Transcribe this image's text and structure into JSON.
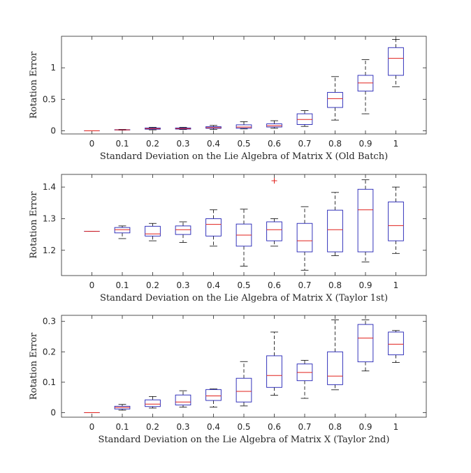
{
  "colors": {
    "box": "#1f1fb4",
    "median": "#e0201b",
    "whisker": "#000000",
    "outlier": "#e0201b",
    "axis": "#262626"
  },
  "chart_data": [
    {
      "type": "box",
      "xlabel": "Standard Deviation on the Lie Algebra of Matrix X (Old Batch)",
      "ylabel": "Rotation Error",
      "ylim": [
        -0.05,
        1.5
      ],
      "yticks": [
        0,
        0.5,
        1
      ],
      "ytick_labels": [
        "0",
        "0.5",
        "1"
      ],
      "categories": [
        "0",
        "0.1",
        "0.2",
        "0.3",
        "0.4",
        "0.5",
        "0.6",
        "0.7",
        "0.8",
        "0.9",
        "1"
      ],
      "boxes": [
        {
          "min": 0,
          "q1": 0,
          "median": 0,
          "q3": 0,
          "max": 0
        },
        {
          "min": 0.01,
          "q1": 0.013,
          "median": 0.015,
          "q3": 0.018,
          "max": 0.022
        },
        {
          "min": 0.015,
          "q1": 0.025,
          "median": 0.035,
          "q3": 0.045,
          "max": 0.055
        },
        {
          "min": 0.02,
          "q1": 0.027,
          "median": 0.035,
          "q3": 0.045,
          "max": 0.055
        },
        {
          "min": 0.02,
          "q1": 0.04,
          "median": 0.05,
          "q3": 0.065,
          "max": 0.085
        },
        {
          "min": 0.03,
          "q1": 0.04,
          "median": 0.06,
          "q3": 0.095,
          "max": 0.145
        },
        {
          "min": 0.04,
          "q1": 0.06,
          "median": 0.08,
          "q3": 0.11,
          "max": 0.16
        },
        {
          "min": 0.07,
          "q1": 0.1,
          "median": 0.18,
          "q3": 0.27,
          "max": 0.32
        },
        {
          "min": 0.17,
          "q1": 0.37,
          "median": 0.51,
          "q3": 0.61,
          "max": 0.86
        },
        {
          "min": 0.27,
          "q1": 0.63,
          "median": 0.76,
          "q3": 0.88,
          "max": 1.13
        },
        {
          "min": 0.7,
          "q1": 0.88,
          "median": 1.15,
          "q3": 1.32,
          "max": 1.45
        }
      ],
      "outliers": []
    },
    {
      "type": "box",
      "xlabel": "Standard Deviation on the Lie Algebra of Matrix X (Taylor 1st)",
      "ylabel": "Rotation Error",
      "ylim": [
        1.12,
        1.44
      ],
      "yticks": [
        1.2,
        1.3,
        1.4
      ],
      "ytick_labels": [
        "1.2",
        "1.3",
        "1.4"
      ],
      "categories": [
        "0",
        "0.1",
        "0.2",
        "0.3",
        "0.4",
        "0.5",
        "0.6",
        "0.7",
        "0.8",
        "0.9",
        "1"
      ],
      "boxes": [
        {
          "min": 1.26,
          "q1": 1.26,
          "median": 1.26,
          "q3": 1.26,
          "max": 1.26
        },
        {
          "min": 1.237,
          "q1": 1.255,
          "median": 1.265,
          "q3": 1.272,
          "max": 1.277
        },
        {
          "min": 1.23,
          "q1": 1.245,
          "median": 1.252,
          "q3": 1.276,
          "max": 1.285
        },
        {
          "min": 1.225,
          "q1": 1.25,
          "median": 1.265,
          "q3": 1.277,
          "max": 1.29
        },
        {
          "min": 1.213,
          "q1": 1.245,
          "median": 1.282,
          "q3": 1.3,
          "max": 1.328
        },
        {
          "min": 1.15,
          "q1": 1.213,
          "median": 1.248,
          "q3": 1.283,
          "max": 1.33
        },
        {
          "min": 1.213,
          "q1": 1.23,
          "median": 1.265,
          "q3": 1.29,
          "max": 1.3
        },
        {
          "min": 1.137,
          "q1": 1.195,
          "median": 1.23,
          "q3": 1.285,
          "max": 1.338
        },
        {
          "min": 1.183,
          "q1": 1.195,
          "median": 1.265,
          "q3": 1.327,
          "max": 1.383
        },
        {
          "min": 1.163,
          "q1": 1.195,
          "median": 1.328,
          "q3": 1.393,
          "max": 1.423
        },
        {
          "min": 1.19,
          "q1": 1.23,
          "median": 1.278,
          "q3": 1.353,
          "max": 1.4
        }
      ],
      "outliers": [
        {
          "category": "0.6",
          "value": 1.42
        }
      ]
    },
    {
      "type": "box",
      "xlabel": "Standard Deviation on the Lie Algebra of Matrix X (Taylor 2nd)",
      "ylabel": "Rotation Error",
      "ylim": [
        -0.015,
        0.32
      ],
      "yticks": [
        0,
        0.1,
        0.2,
        0.3
      ],
      "ytick_labels": [
        "0",
        "0.1",
        "0.2",
        "0.3"
      ],
      "categories": [
        "0",
        "0.1",
        "0.2",
        "0.3",
        "0.4",
        "0.5",
        "0.6",
        "0.7",
        "0.8",
        "0.9",
        "1"
      ],
      "boxes": [
        {
          "min": 0,
          "q1": 0,
          "median": 0,
          "q3": 0,
          "max": 0
        },
        {
          "min": 0.008,
          "q1": 0.012,
          "median": 0.017,
          "q3": 0.021,
          "max": 0.027
        },
        {
          "min": 0.015,
          "q1": 0.02,
          "median": 0.028,
          "q3": 0.042,
          "max": 0.053
        },
        {
          "min": 0.018,
          "q1": 0.025,
          "median": 0.035,
          "q3": 0.058,
          "max": 0.072
        },
        {
          "min": 0.018,
          "q1": 0.04,
          "median": 0.055,
          "q3": 0.076,
          "max": 0.078
        },
        {
          "min": 0.022,
          "q1": 0.035,
          "median": 0.07,
          "q3": 0.113,
          "max": 0.168
        },
        {
          "min": 0.057,
          "q1": 0.083,
          "median": 0.122,
          "q3": 0.187,
          "max": 0.265
        },
        {
          "min": 0.047,
          "q1": 0.105,
          "median": 0.132,
          "q3": 0.16,
          "max": 0.172
        },
        {
          "min": 0.075,
          "q1": 0.092,
          "median": 0.12,
          "q3": 0.2,
          "max": 0.305
        },
        {
          "min": 0.137,
          "q1": 0.167,
          "median": 0.245,
          "q3": 0.29,
          "max": 0.305
        },
        {
          "min": 0.165,
          "q1": 0.19,
          "median": 0.225,
          "q3": 0.265,
          "max": 0.27
        }
      ],
      "outliers": []
    }
  ]
}
